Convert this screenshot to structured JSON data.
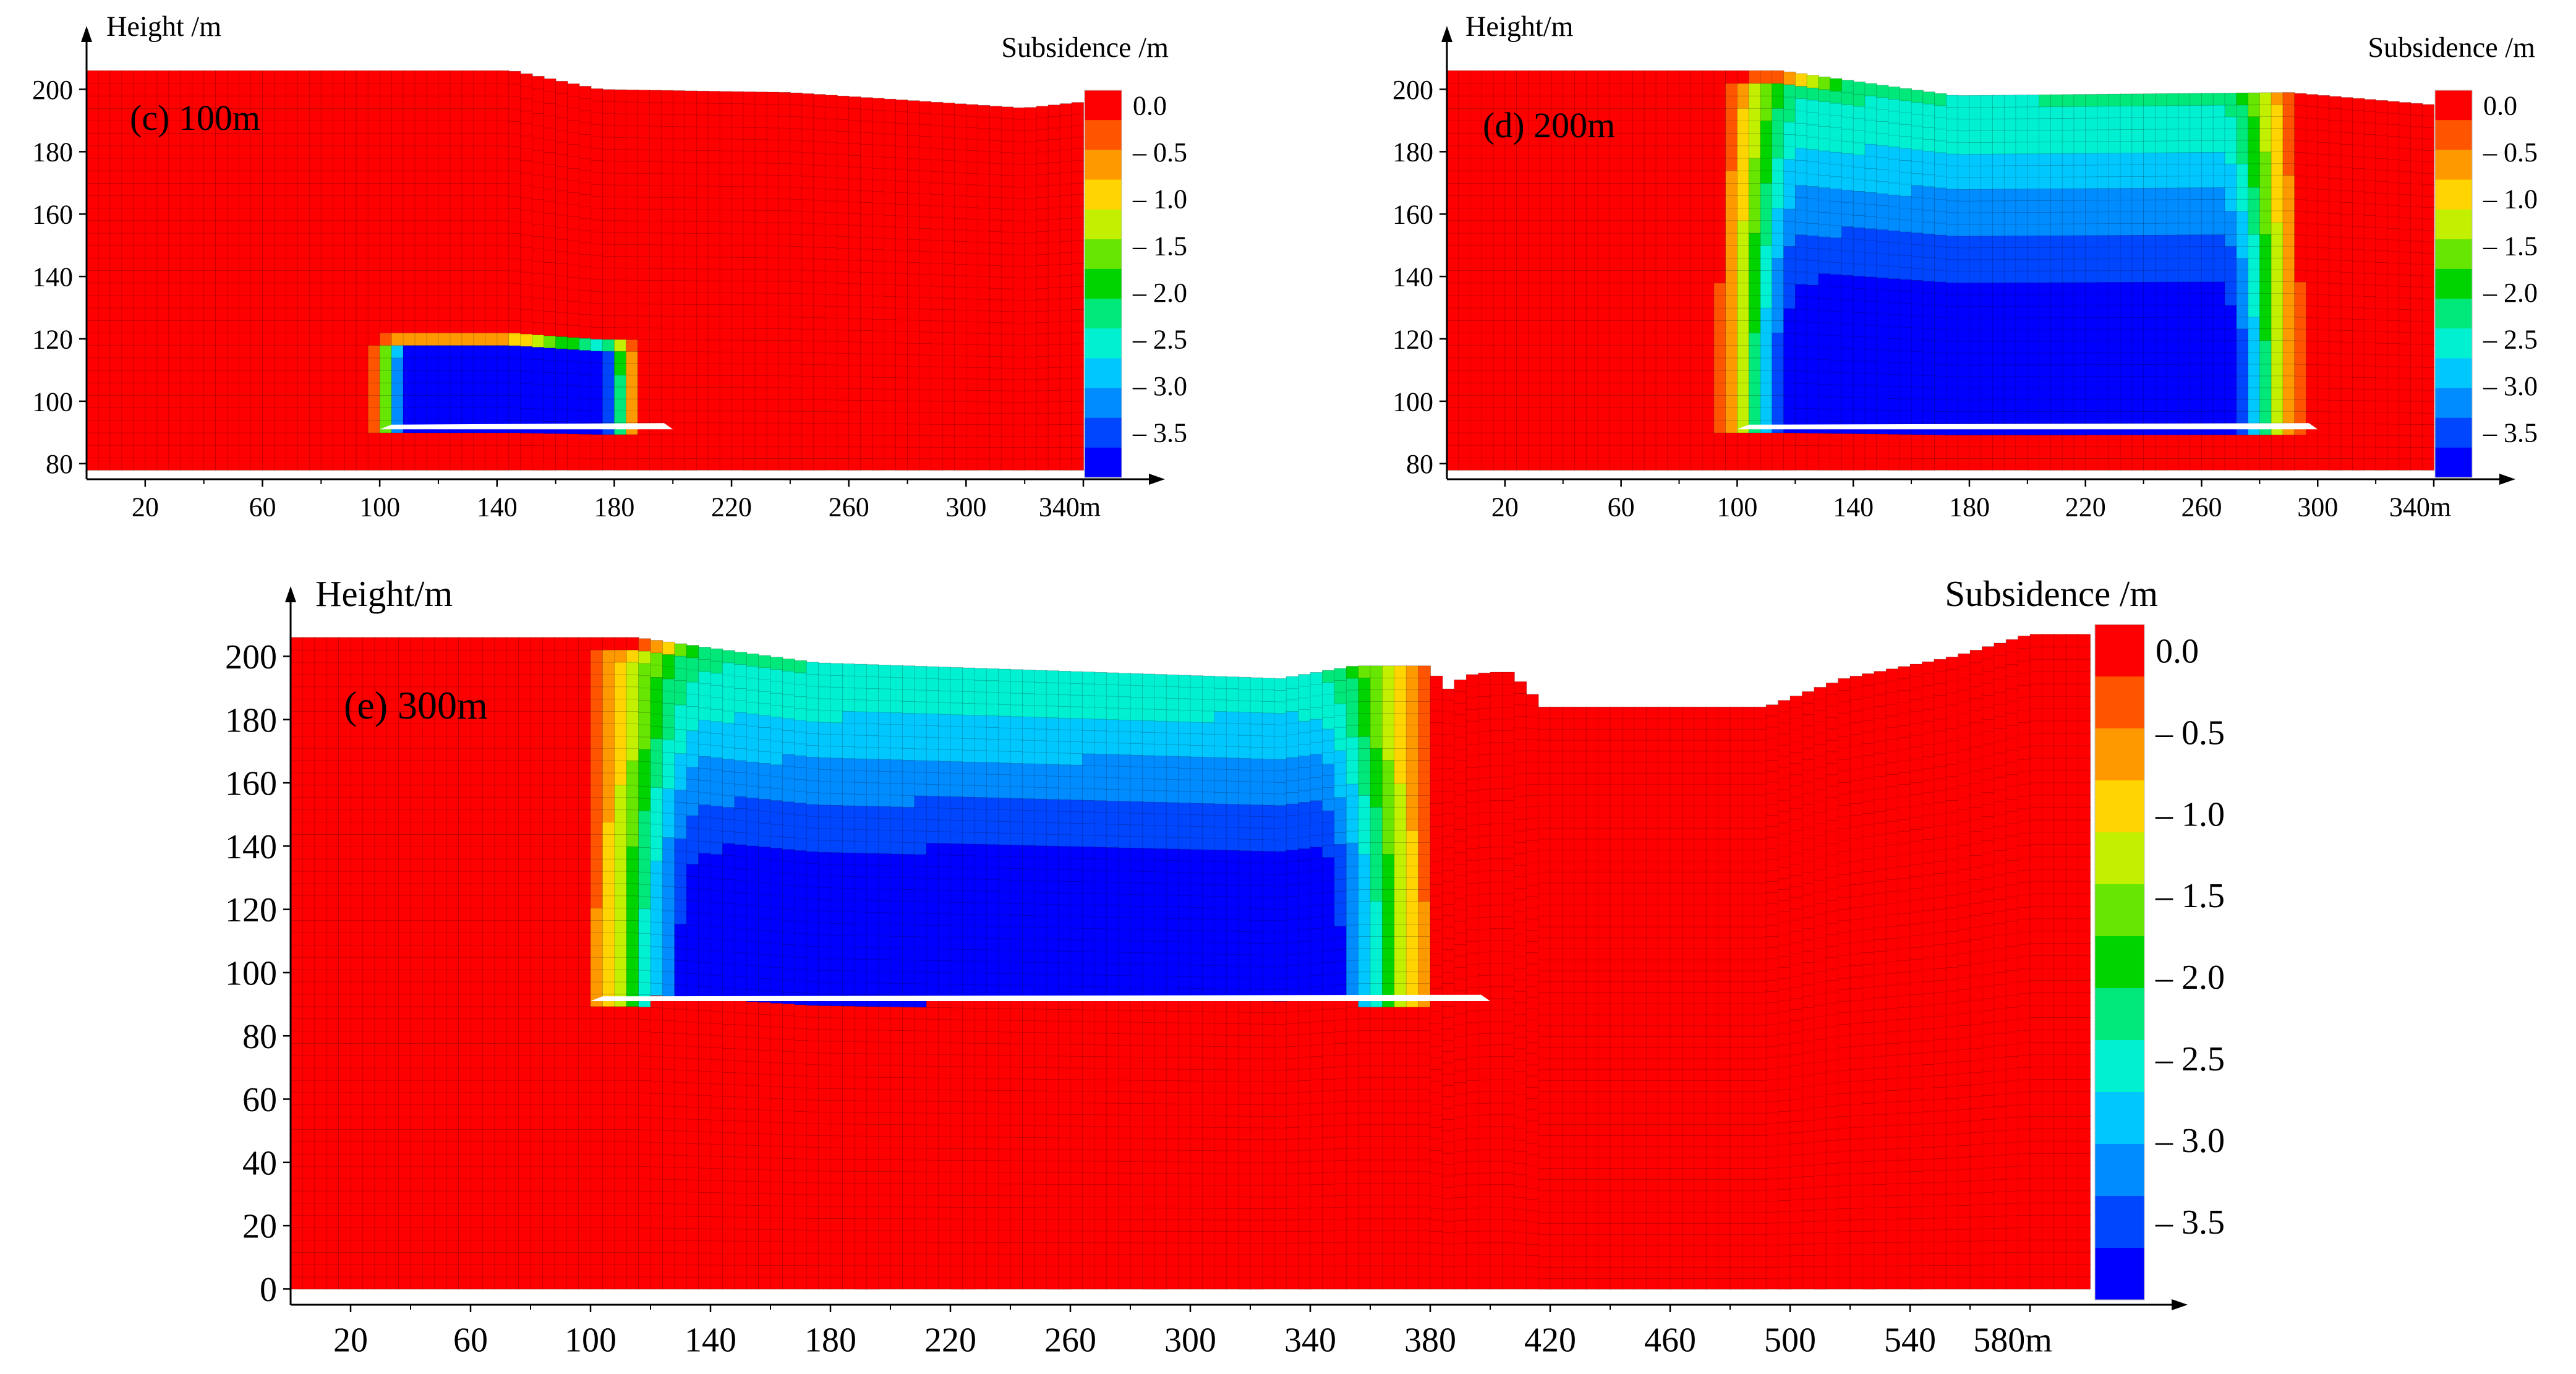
{
  "chart_data": [
    {
      "type": "heatmap",
      "panel_label": "(c)  100m",
      "ylabel": "Height /m",
      "xunit": "m",
      "colorbar_title": "Subsidence /m",
      "x_ticks": [
        20,
        60,
        100,
        140,
        180,
        220,
        260,
        300,
        340
      ],
      "y_ticks": [
        80,
        100,
        120,
        140,
        160,
        180,
        200
      ],
      "xlim": [
        0,
        340
      ],
      "ylim": [
        75,
        210
      ],
      "colorbar_ticks": [
        "0.0",
        "– 0.5",
        "– 1.0",
        "– 1.5",
        "– 2.0",
        "– 2.5",
        "– 3.0",
        "– 3.5"
      ],
      "surface_profile": [
        [
          0,
          206
        ],
        [
          145,
          206
        ],
        [
          175,
          200
        ],
        [
          240,
          199
        ],
        [
          320,
          194
        ],
        [
          340,
          196
        ]
      ],
      "goaf": {
        "x_start": 100,
        "x_end": 200,
        "y_floor": 91
      },
      "subsidence_max": 3.8,
      "max_zone": {
        "x": [
          95,
          190
        ],
        "top_height": 122
      }
    },
    {
      "type": "heatmap",
      "panel_label": "(d)  200m",
      "ylabel": "Height/m",
      "xunit": "m",
      "colorbar_title": "Subsidence /m",
      "x_ticks": [
        20,
        60,
        100,
        140,
        180,
        220,
        260,
        300,
        340
      ],
      "y_ticks": [
        80,
        100,
        120,
        140,
        160,
        180,
        200
      ],
      "xlim": [
        0,
        340
      ],
      "ylim": [
        75,
        210
      ],
      "colorbar_ticks": [
        "0.0",
        "– 0.5",
        "– 1.0",
        "– 1.5",
        "– 2.0",
        "– 2.5",
        "– 3.0",
        "– 3.5"
      ],
      "surface_profile": [
        [
          0,
          206
        ],
        [
          115,
          206
        ],
        [
          175,
          198
        ],
        [
          290,
          199
        ],
        [
          340,
          195
        ]
      ],
      "goaf": {
        "x_start": 100,
        "x_end": 300,
        "y_floor": 91
      },
      "subsidence_max": 3.8,
      "max_zone": {
        "x": [
          88,
          300
        ],
        "top_height": 206
      }
    },
    {
      "type": "heatmap",
      "panel_label": "(e)  300m",
      "ylabel": "Height/m",
      "xunit": "m",
      "colorbar_title": "Subsidence /m",
      "x_ticks": [
        20,
        60,
        100,
        140,
        180,
        220,
        260,
        300,
        340,
        380,
        420,
        460,
        500,
        540,
        580
      ],
      "y_ticks": [
        0,
        20,
        40,
        60,
        80,
        100,
        120,
        140,
        160,
        180,
        200
      ],
      "xlim": [
        0,
        600
      ],
      "ylim": [
        -5,
        212
      ],
      "colorbar_ticks": [
        "0.0",
        "– 0.5",
        "– 1.0",
        "– 1.5",
        "– 2.0",
        "– 2.5",
        "– 3.0",
        "– 3.5"
      ],
      "surface_profile": [
        [
          0,
          206
        ],
        [
          115,
          206
        ],
        [
          175,
          198
        ],
        [
          330,
          193
        ],
        [
          355,
          197
        ],
        [
          380,
          197
        ],
        [
          385,
          189
        ],
        [
          392,
          194
        ],
        [
          400,
          195
        ],
        [
          407,
          195
        ],
        [
          418,
          184
        ],
        [
          492,
          184
        ],
        [
          518,
          193
        ],
        [
          555,
          200
        ],
        [
          580,
          207
        ],
        [
          600,
          207
        ]
      ],
      "goaf": {
        "x_start": 100,
        "x_end": 400,
        "y_floor": 91
      },
      "subsidence_max": 3.9,
      "max_zone": {
        "x": [
          90,
          390
        ],
        "top_height": 206
      }
    }
  ]
}
